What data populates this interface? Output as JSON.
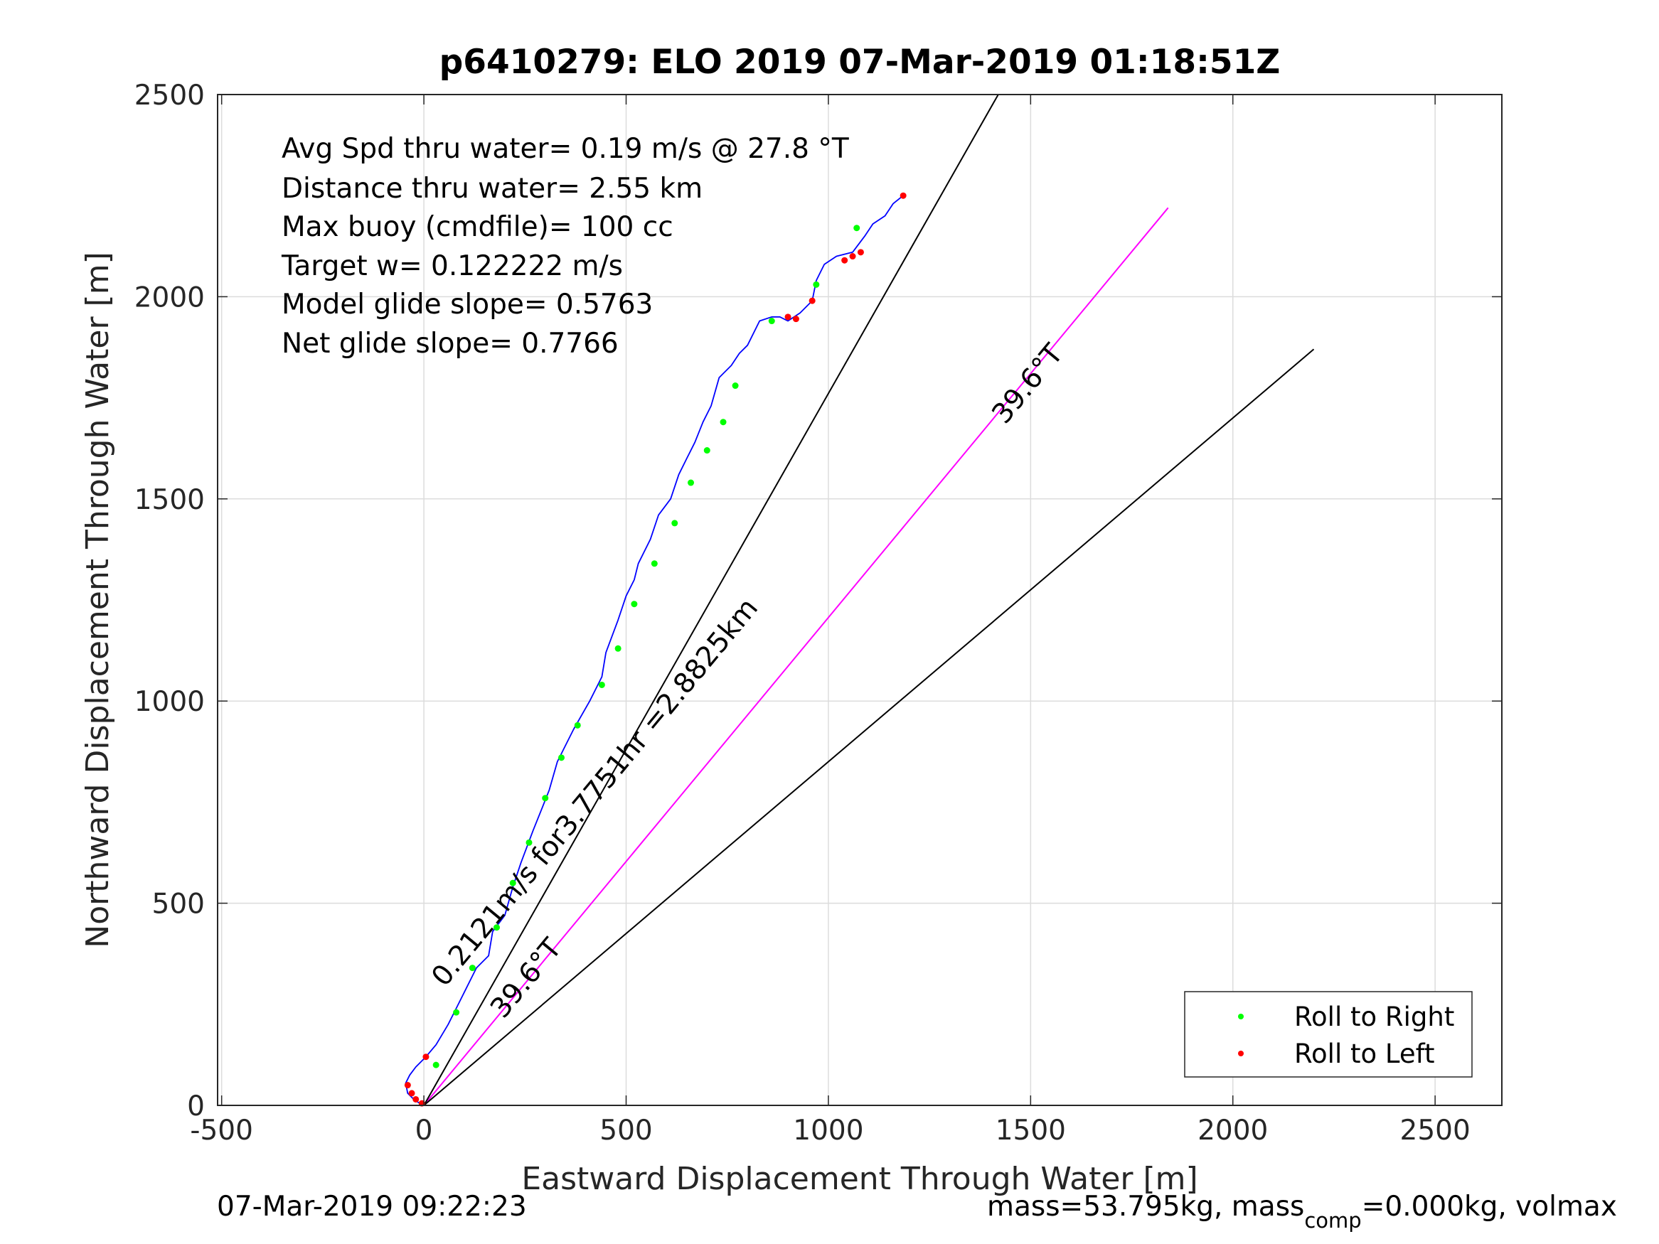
{
  "chart_data": {
    "type": "line",
    "title": "p6410279: ELO 2019 07-Mar-2019 01:18:51Z",
    "xlabel": "Eastward Displacement Through Water [m]",
    "ylabel": "Northward Displacement Through Water [m]",
    "xlim": [
      -510,
      2665
    ],
    "ylim": [
      0,
      2500
    ],
    "x_ticks": [
      -500,
      0,
      500,
      1000,
      1500,
      2000,
      2500
    ],
    "y_ticks": [
      0,
      500,
      1000,
      1500,
      2000,
      2500
    ],
    "x_tick_labels": [
      "-500",
      "0",
      "500",
      "1000",
      "1500",
      "2000",
      "2500"
    ],
    "y_tick_labels": [
      "0",
      "500",
      "1000",
      "1500",
      "2000",
      "2500"
    ],
    "grid": true,
    "legend_position": "bottom-right",
    "stats": [
      "Avg Spd thru water=  0.19 m/s @  27.8 °T",
      "Distance thru water=  2.55 km",
      "Max buoy (cmdfile)= 100 cc",
      "Target w= 0.122222 m/s",
      "Model glide slope= 0.5763",
      "Net glide slope= 0.7766"
    ],
    "series": [
      {
        "name": "",
        "color": "#0000ff",
        "x": [
          0,
          -10,
          -25,
          -40,
          -45,
          -35,
          -20,
          -5,
          5,
          5,
          30,
          60,
          80,
          100,
          130,
          160,
          170,
          200,
          220,
          240,
          270,
          290,
          310,
          330,
          345,
          370,
          410,
          440,
          450,
          480,
          500,
          520,
          530,
          560,
          580,
          610,
          630,
          650,
          670,
          690,
          710,
          730,
          760,
          780,
          800,
          830,
          860,
          880,
          900,
          930,
          960,
          970,
          990,
          1020,
          1060,
          1090,
          1110,
          1140,
          1160,
          1185
        ],
        "y": [
          0,
          5,
          15,
          30,
          55,
          75,
          95,
          110,
          120,
          120,
          150,
          200,
          240,
          280,
          340,
          370,
          430,
          470,
          540,
          600,
          680,
          730,
          780,
          850,
          880,
          930,
          1000,
          1060,
          1120,
          1200,
          1260,
          1300,
          1340,
          1400,
          1460,
          1500,
          1560,
          1600,
          1640,
          1690,
          1730,
          1800,
          1830,
          1860,
          1880,
          1940,
          1950,
          1950,
          1940,
          1960,
          1990,
          2040,
          2080,
          2100,
          2110,
          2150,
          2180,
          2200,
          2230,
          2250
        ]
      },
      {
        "name": "",
        "color": "#ff00ff",
        "x": [
          0,
          1840
        ],
        "y": [
          0,
          2220
        ]
      },
      {
        "name": "",
        "color": "#000000",
        "x": [
          0,
          1420
        ],
        "y": [
          0,
          2500
        ]
      },
      {
        "name": "",
        "color": "#000000",
        "x": [
          0,
          2200
        ],
        "y": [
          0,
          1870
        ]
      }
    ],
    "markers": [
      {
        "name": "Roll to Right",
        "color": "#00ff00",
        "x": [
          30,
          80,
          120,
          180,
          220,
          260,
          300,
          340,
          380,
          440,
          480,
          520,
          570,
          620,
          660,
          700,
          740,
          770,
          860,
          970,
          1070
        ],
        "y": [
          100,
          230,
          340,
          440,
          550,
          650,
          760,
          860,
          940,
          1040,
          1130,
          1240,
          1340,
          1440,
          1540,
          1620,
          1690,
          1780,
          1940,
          2030,
          2170
        ]
      },
      {
        "name": "Roll to Left",
        "color": "#ff0000",
        "x": [
          -40,
          -30,
          -20,
          -5,
          5,
          900,
          920,
          960,
          1040,
          1060,
          1080,
          1185
        ],
        "y": [
          50,
          30,
          15,
          5,
          120,
          1950,
          1945,
          1990,
          2090,
          2100,
          2110,
          2250
        ]
      }
    ],
    "annotations": [
      {
        "text": "39.6°T",
        "x": 1510,
        "y": 1770,
        "angle_deg": 50.4
      },
      {
        "text": "39.6°T",
        "x": 270,
        "y": 300,
        "angle_deg": 50.4
      },
      {
        "text": "0.2121m/s for3.7751hr =2.8825km",
        "x": 440,
        "y": 760,
        "angle_deg": 50.4
      }
    ]
  },
  "footer": {
    "timestamp": "07-Mar-2019 09:22:23",
    "mass_text_a": "mass=53.795kg, mass",
    "mass_text_sub": "comp",
    "mass_text_b": "=0.000kg, volmax"
  }
}
